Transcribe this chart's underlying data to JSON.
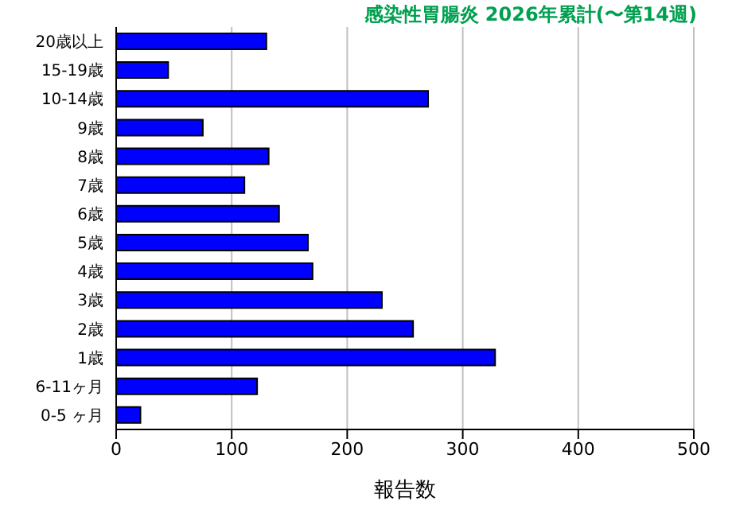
{
  "chart_data": {
    "type": "bar",
    "orientation": "horizontal",
    "title": "感染性胃腸炎 2026年累計(〜第14週)",
    "xlabel": "報告数",
    "categories": [
      "20歳以上",
      "15-19歳",
      "10-14歳",
      "9歳",
      "8歳",
      "7歳",
      "6歳",
      "5歳",
      "4歳",
      "3歳",
      "2歳",
      "1歳",
      "6-11ヶ月",
      "0-5 ヶ月"
    ],
    "values": [
      130,
      45,
      270,
      75,
      132,
      111,
      141,
      166,
      170,
      230,
      257,
      328,
      122,
      21
    ],
    "color": "#0000ff",
    "xlim": [
      0,
      500
    ],
    "xticks": [
      0,
      100,
      200,
      300,
      400,
      500
    ],
    "grid": "x"
  }
}
